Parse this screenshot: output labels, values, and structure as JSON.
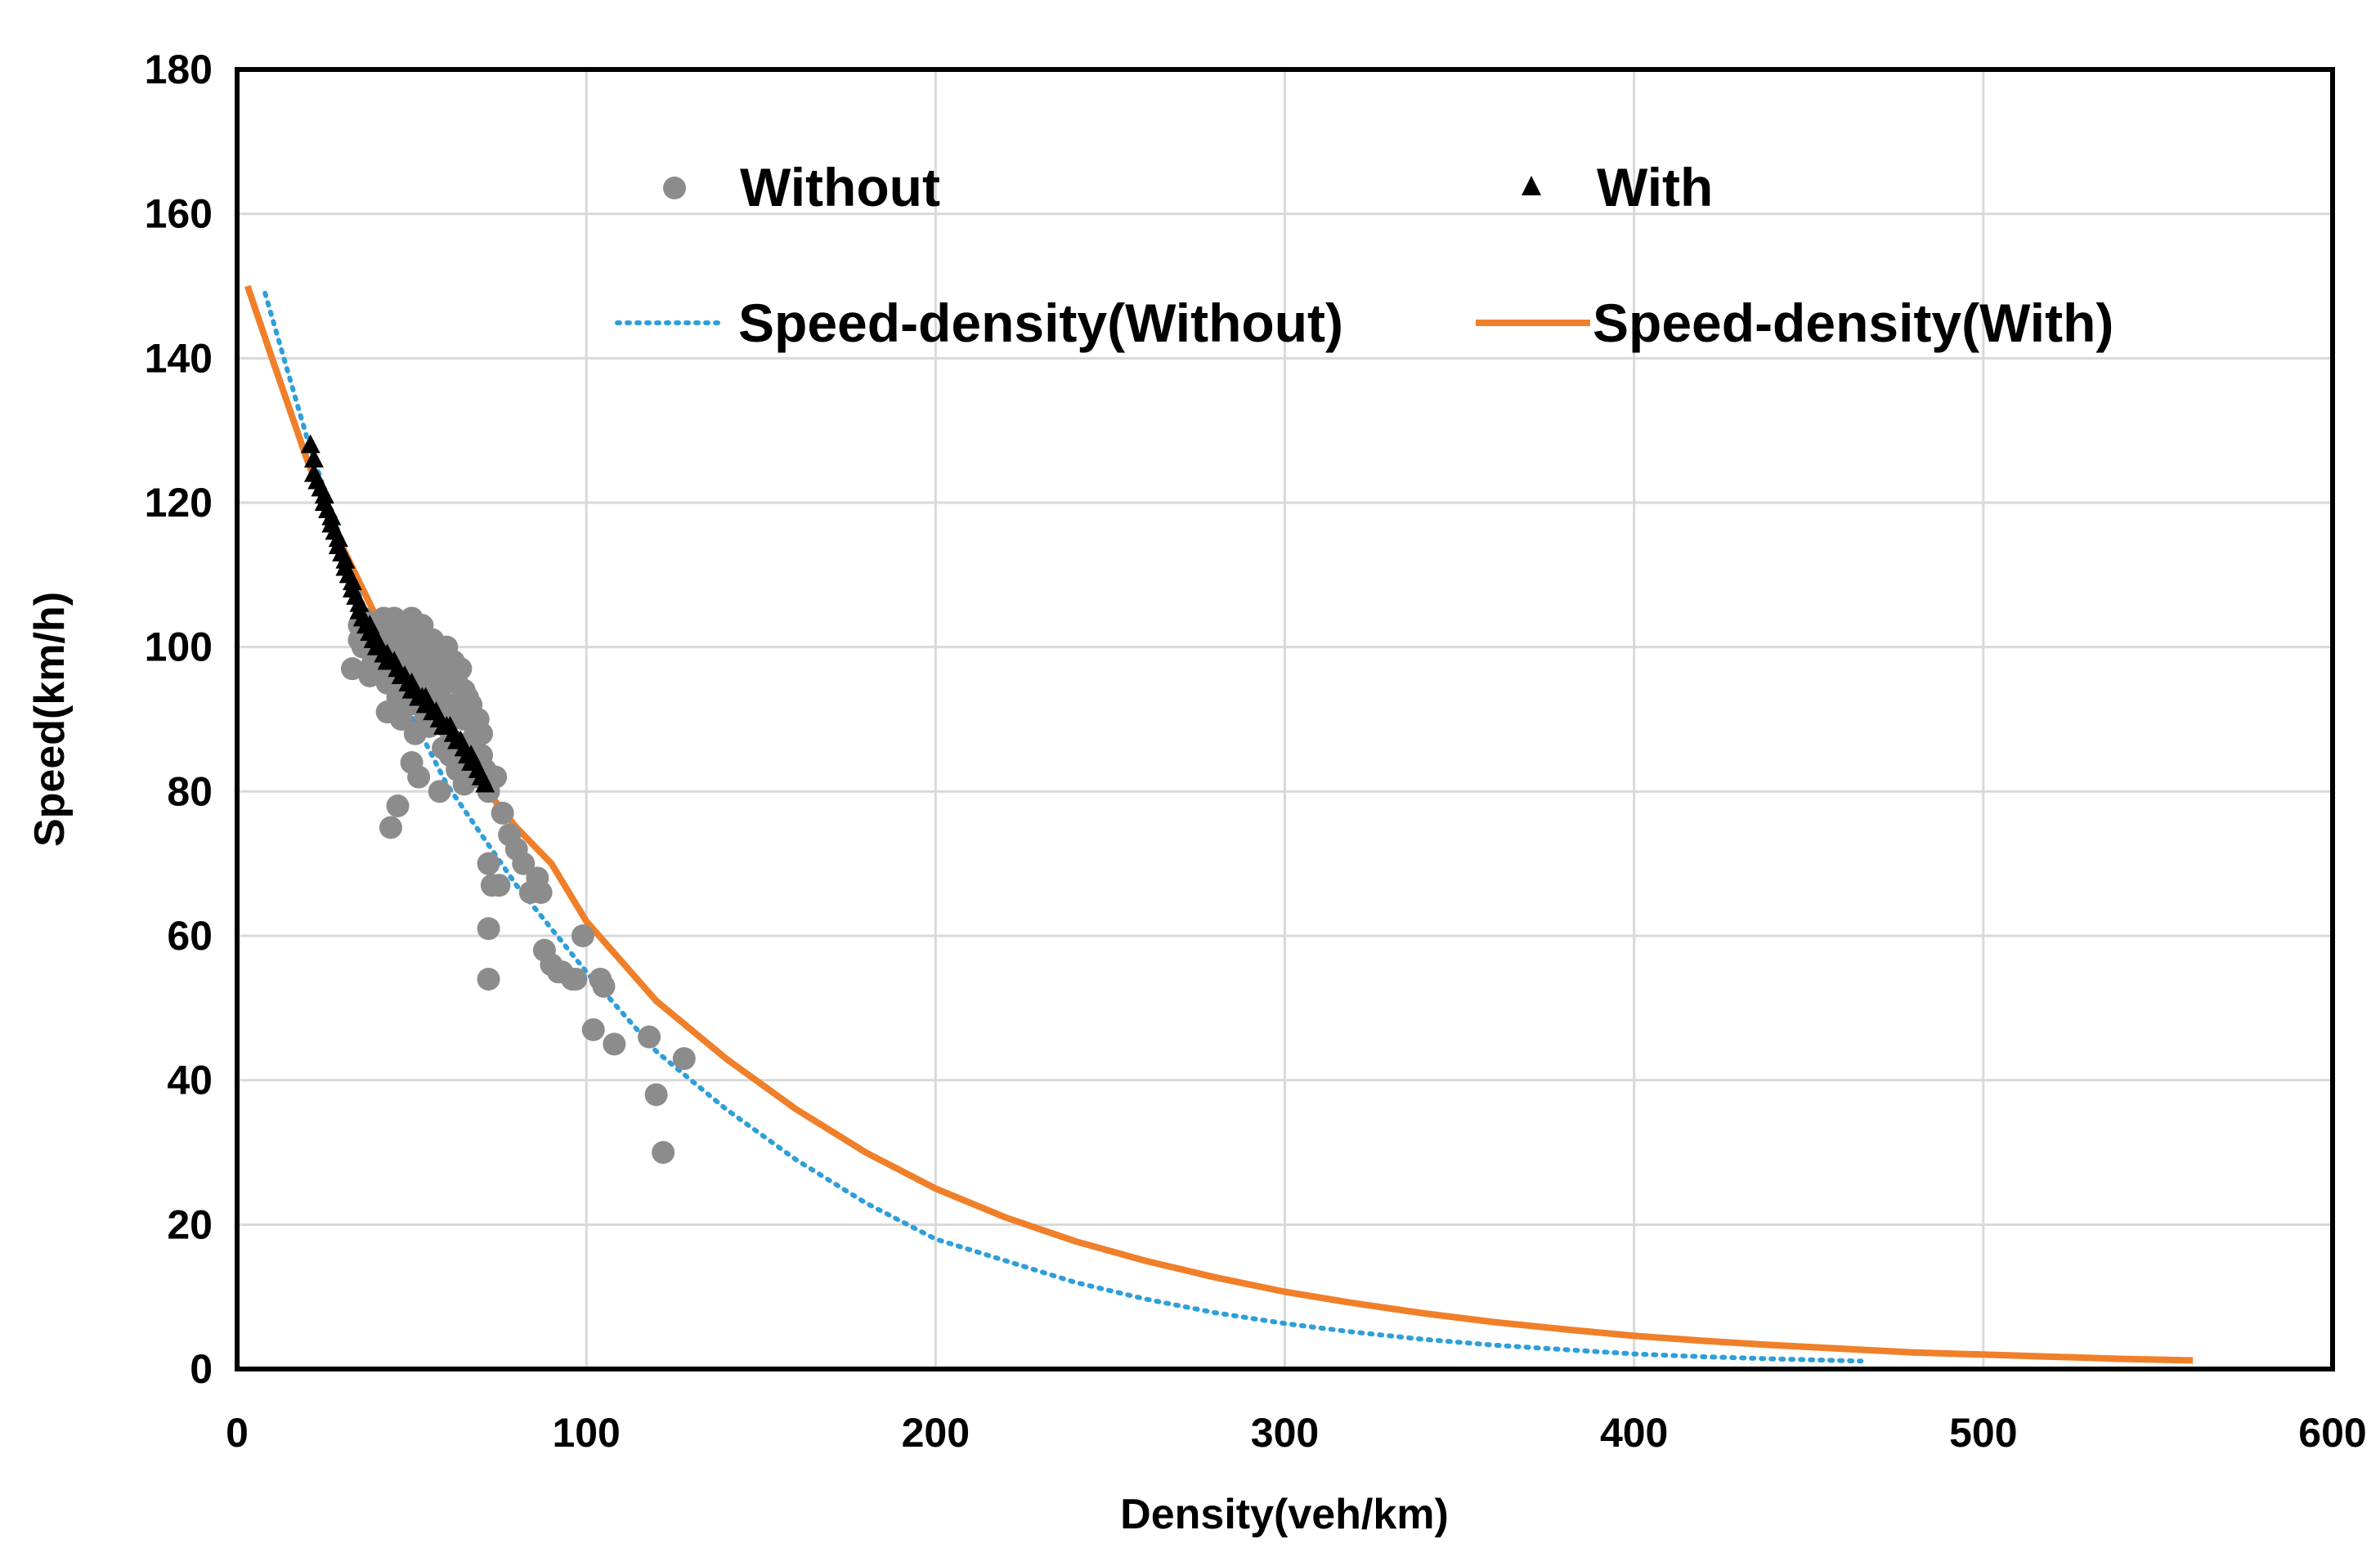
{
  "chart_data": {
    "type": "scatter",
    "title": "",
    "xlabel": "Density(veh/km)",
    "ylabel": "Speed(km/h)",
    "xlim": [
      0,
      600
    ],
    "ylim": [
      0,
      180
    ],
    "xticks": [
      0,
      100,
      200,
      300,
      400,
      500,
      600
    ],
    "yticks": [
      0,
      20,
      40,
      60,
      80,
      100,
      120,
      140,
      160,
      180
    ],
    "grid": true,
    "legend_position": "top",
    "colors": {
      "without_points": "#8c8c8c",
      "with_points": "#000000",
      "fit_without": "#2e9fd9",
      "fit_with": "#f07f2a",
      "grid": "#d9d9d9"
    },
    "legend": [
      {
        "label": "Without",
        "marker": "circle",
        "series": "without"
      },
      {
        "label": "With",
        "marker": "triangle",
        "series": "with"
      },
      {
        "label": "Speed-density(Without)",
        "line": "dotted",
        "series": "fit_without"
      },
      {
        "label": "Speed-density(With)",
        "line": "solid",
        "series": "fit_with"
      }
    ],
    "series": [
      {
        "name": "Without",
        "kind": "scatter",
        "x": [
          33,
          35,
          36,
          38,
          39,
          40,
          41,
          42,
          42,
          43,
          44,
          44,
          45,
          45,
          46,
          46,
          47,
          47,
          48,
          48,
          49,
          49,
          50,
          50,
          51,
          51,
          52,
          52,
          53,
          53,
          54,
          54,
          55,
          55,
          56,
          56,
          57,
          57,
          58,
          58,
          59,
          59,
          60,
          60,
          61,
          61,
          62,
          62,
          63,
          63,
          64,
          64,
          65,
          65,
          66,
          66,
          67,
          67,
          68,
          68,
          69,
          70,
          70,
          71,
          72,
          74,
          76,
          78,
          80,
          82,
          84,
          86,
          88,
          90,
          93,
          96,
          99,
          102,
          105,
          108,
          118,
          120,
          122,
          128,
          50,
          44,
          46,
          40,
          38,
          36,
          35,
          37,
          39,
          43,
          47,
          49,
          51,
          55,
          57,
          59,
          61,
          63,
          65,
          72,
          72,
          72,
          73,
          75,
          87,
          92,
          97,
          104,
          52,
          58,
          64
        ],
        "y": [
          97,
          101,
          104,
          96,
          99,
          103,
          102,
          104,
          97,
          95,
          103,
          100,
          98,
          104,
          93,
          101,
          97,
          103,
          95,
          100,
          92,
          98,
          104,
          96,
          101,
          95,
          99,
          92,
          103,
          97,
          90,
          100,
          95,
          98,
          93,
          101,
          96,
          90,
          99,
          94,
          97,
          91,
          100,
          89,
          96,
          92,
          98,
          87,
          95,
          91,
          97,
          86,
          94,
          90,
          93,
          84,
          92,
          87,
          89,
          82,
          90,
          88,
          85,
          83,
          80,
          82,
          77,
          74,
          72,
          70,
          66,
          68,
          58,
          56,
          55,
          54,
          60,
          47,
          53,
          45,
          46,
          38,
          30,
          43,
          84,
          75,
          78,
          99,
          97,
          100,
          103,
          102,
          98,
          91,
          90,
          93,
          88,
          89,
          94,
          86,
          85,
          83,
          81,
          70,
          61,
          54,
          67,
          67,
          66,
          55,
          54,
          54,
          82,
          80,
          86
        ]
      },
      {
        "name": "With",
        "kind": "scatter",
        "x": [
          21,
          22,
          22,
          23,
          24,
          25,
          25,
          26,
          27,
          27,
          28,
          29,
          29,
          30,
          31,
          31,
          32,
          33,
          33,
          34,
          35,
          35,
          36,
          37,
          38,
          38,
          39,
          40,
          40,
          41,
          42,
          43,
          43,
          44,
          45,
          46,
          46,
          47,
          48,
          49,
          50,
          50,
          51,
          52,
          53,
          54,
          54,
          55,
          56,
          57,
          58,
          58,
          59,
          60,
          61,
          62,
          62,
          63,
          64,
          65,
          66,
          67,
          67,
          68,
          69,
          70,
          70,
          71
        ],
        "y": [
          128,
          126,
          124,
          123,
          122,
          121,
          120,
          119,
          118,
          117,
          116,
          115,
          114,
          113,
          112,
          111,
          110,
          109,
          108,
          107,
          106,
          105,
          104,
          103,
          103,
          102,
          101,
          101,
          100,
          100,
          99,
          99,
          98,
          98,
          98,
          97,
          97,
          96,
          96,
          95,
          95,
          94,
          94,
          93,
          93,
          93,
          92,
          92,
          91,
          91,
          90,
          90,
          89,
          89,
          89,
          88,
          88,
          87,
          87,
          86,
          85,
          85,
          84,
          84,
          83,
          82,
          82,
          81
        ]
      },
      {
        "name": "Speed-density(Without)",
        "kind": "line",
        "style": "dotted",
        "x": [
          8,
          20,
          40,
          60,
          80,
          100,
          120,
          140,
          160,
          180,
          200,
          220,
          240,
          260,
          280,
          300,
          320,
          340,
          360,
          380,
          400,
          420,
          440,
          465
        ],
        "y": [
          149,
          129,
          100,
          81,
          67,
          55,
          44,
          36,
          29,
          23,
          18,
          15,
          12,
          9.7,
          7.8,
          6.3,
          5.1,
          4.1,
          3.3,
          2.7,
          2.1,
          1.7,
          1.4,
          1.1
        ]
      },
      {
        "name": "Speed-density(With)",
        "kind": "line",
        "style": "solid",
        "x": [
          3,
          10,
          20,
          30,
          40,
          50,
          60,
          70,
          80,
          90,
          100,
          120,
          140,
          160,
          180,
          200,
          220,
          240,
          260,
          280,
          300,
          320,
          340,
          360,
          380,
          400,
          420,
          440,
          460,
          480,
          500,
          520,
          540,
          560
        ],
        "y": [
          150,
          140,
          126,
          114,
          104,
          95,
          87,
          81,
          75,
          70,
          62,
          51,
          43,
          36,
          30,
          25,
          21,
          17.7,
          15,
          12.7,
          10.7,
          9.1,
          7.7,
          6.5,
          5.5,
          4.6,
          3.9,
          3.3,
          2.8,
          2.3,
          2,
          1.7,
          1.4,
          1.2
        ]
      }
    ]
  }
}
